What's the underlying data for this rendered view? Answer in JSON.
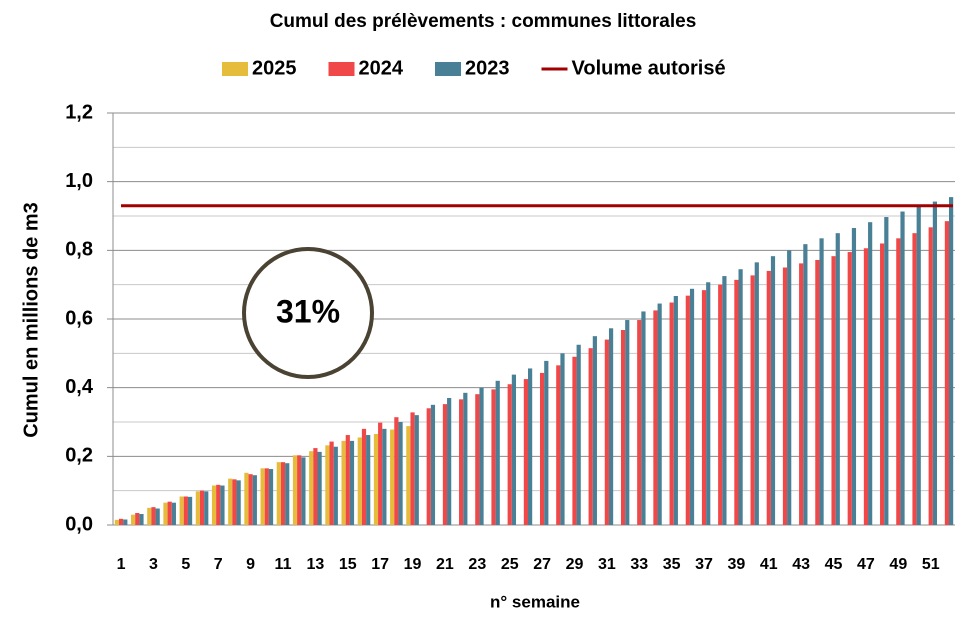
{
  "chart_data": {
    "type": "bar",
    "title": "Cumul des prélèvements : communes littorales",
    "x_label": "n° semaine",
    "y_label": "Cumul en millions de m3",
    "categories": [
      "1",
      null,
      "3",
      null,
      "5",
      null,
      "7",
      null,
      "9",
      null,
      "11",
      null,
      "13",
      null,
      "15",
      null,
      "17",
      null,
      "19",
      null,
      "21",
      null,
      "23",
      null,
      "25",
      null,
      "27",
      null,
      "29",
      null,
      "31",
      null,
      "33",
      null,
      "35",
      null,
      "37",
      null,
      "39",
      null,
      "41",
      null,
      "43",
      null,
      "45",
      null,
      "47",
      null,
      "49",
      null,
      "51",
      null
    ],
    "series": [
      {
        "name": "2025",
        "color": "#e6bc3c",
        "values": [
          0.015,
          0.03,
          0.05,
          0.065,
          0.083,
          0.098,
          0.115,
          0.135,
          0.152,
          0.165,
          0.183,
          0.203,
          0.215,
          0.232,
          0.245,
          0.255,
          0.265,
          0.278,
          0.288,
          null,
          null,
          null,
          null,
          null,
          null,
          null,
          null,
          null,
          null,
          null,
          null,
          null,
          null,
          null,
          null,
          null,
          null,
          null,
          null,
          null,
          null,
          null,
          null,
          null,
          null,
          null,
          null,
          null,
          null,
          null,
          null,
          null
        ]
      },
      {
        "name": "2024",
        "color": "#f04848",
        "values": [
          0.018,
          0.035,
          0.052,
          0.068,
          0.083,
          0.1,
          0.117,
          0.133,
          0.148,
          0.165,
          0.183,
          0.203,
          0.224,
          0.243,
          0.262,
          0.28,
          0.298,
          0.314,
          0.328,
          0.34,
          0.352,
          0.366,
          0.381,
          0.395,
          0.41,
          0.425,
          0.443,
          0.465,
          0.49,
          0.515,
          0.54,
          0.568,
          0.597,
          0.625,
          0.648,
          0.668,
          0.684,
          0.7,
          0.714,
          0.727,
          0.74,
          0.75,
          0.762,
          0.772,
          0.783,
          0.795,
          0.806,
          0.82,
          0.835,
          0.85,
          0.867,
          0.885
        ]
      },
      {
        "name": "2023",
        "color": "#4a8096",
        "values": [
          0.016,
          0.032,
          0.048,
          0.065,
          0.082,
          0.098,
          0.115,
          0.13,
          0.145,
          0.163,
          0.18,
          0.197,
          0.213,
          0.228,
          0.245,
          0.262,
          0.28,
          0.3,
          0.32,
          0.35,
          0.37,
          0.385,
          0.4,
          0.42,
          0.438,
          0.456,
          0.478,
          0.5,
          0.525,
          0.55,
          0.573,
          0.597,
          0.622,
          0.645,
          0.667,
          0.688,
          0.707,
          0.725,
          0.745,
          0.765,
          0.783,
          0.8,
          0.818,
          0.835,
          0.85,
          0.865,
          0.882,
          0.897,
          0.913,
          0.928,
          0.942,
          0.955
        ]
      }
    ],
    "lines": [
      {
        "name": "Volume autorisé",
        "color": "#a00000",
        "value": 0.93
      }
    ],
    "annotations": [
      {
        "text": "31%"
      }
    ],
    "ylim": [
      0,
      1.2
    ],
    "yticks": [
      {
        "value": 0,
        "label": "0,0"
      },
      {
        "value": 0.2,
        "label": "0,2"
      },
      {
        "value": 0.4,
        "label": "0,4"
      },
      {
        "value": 0.6,
        "label": "0,6"
      },
      {
        "value": 0.8,
        "label": "0,8"
      },
      {
        "value": 1.0,
        "label": "1,0"
      },
      {
        "value": 1.2,
        "label": "1,2"
      }
    ],
    "minor_yticks": [
      0.1,
      0.3,
      0.5,
      0.7,
      0.9,
      1.1
    ],
    "grid": true
  }
}
